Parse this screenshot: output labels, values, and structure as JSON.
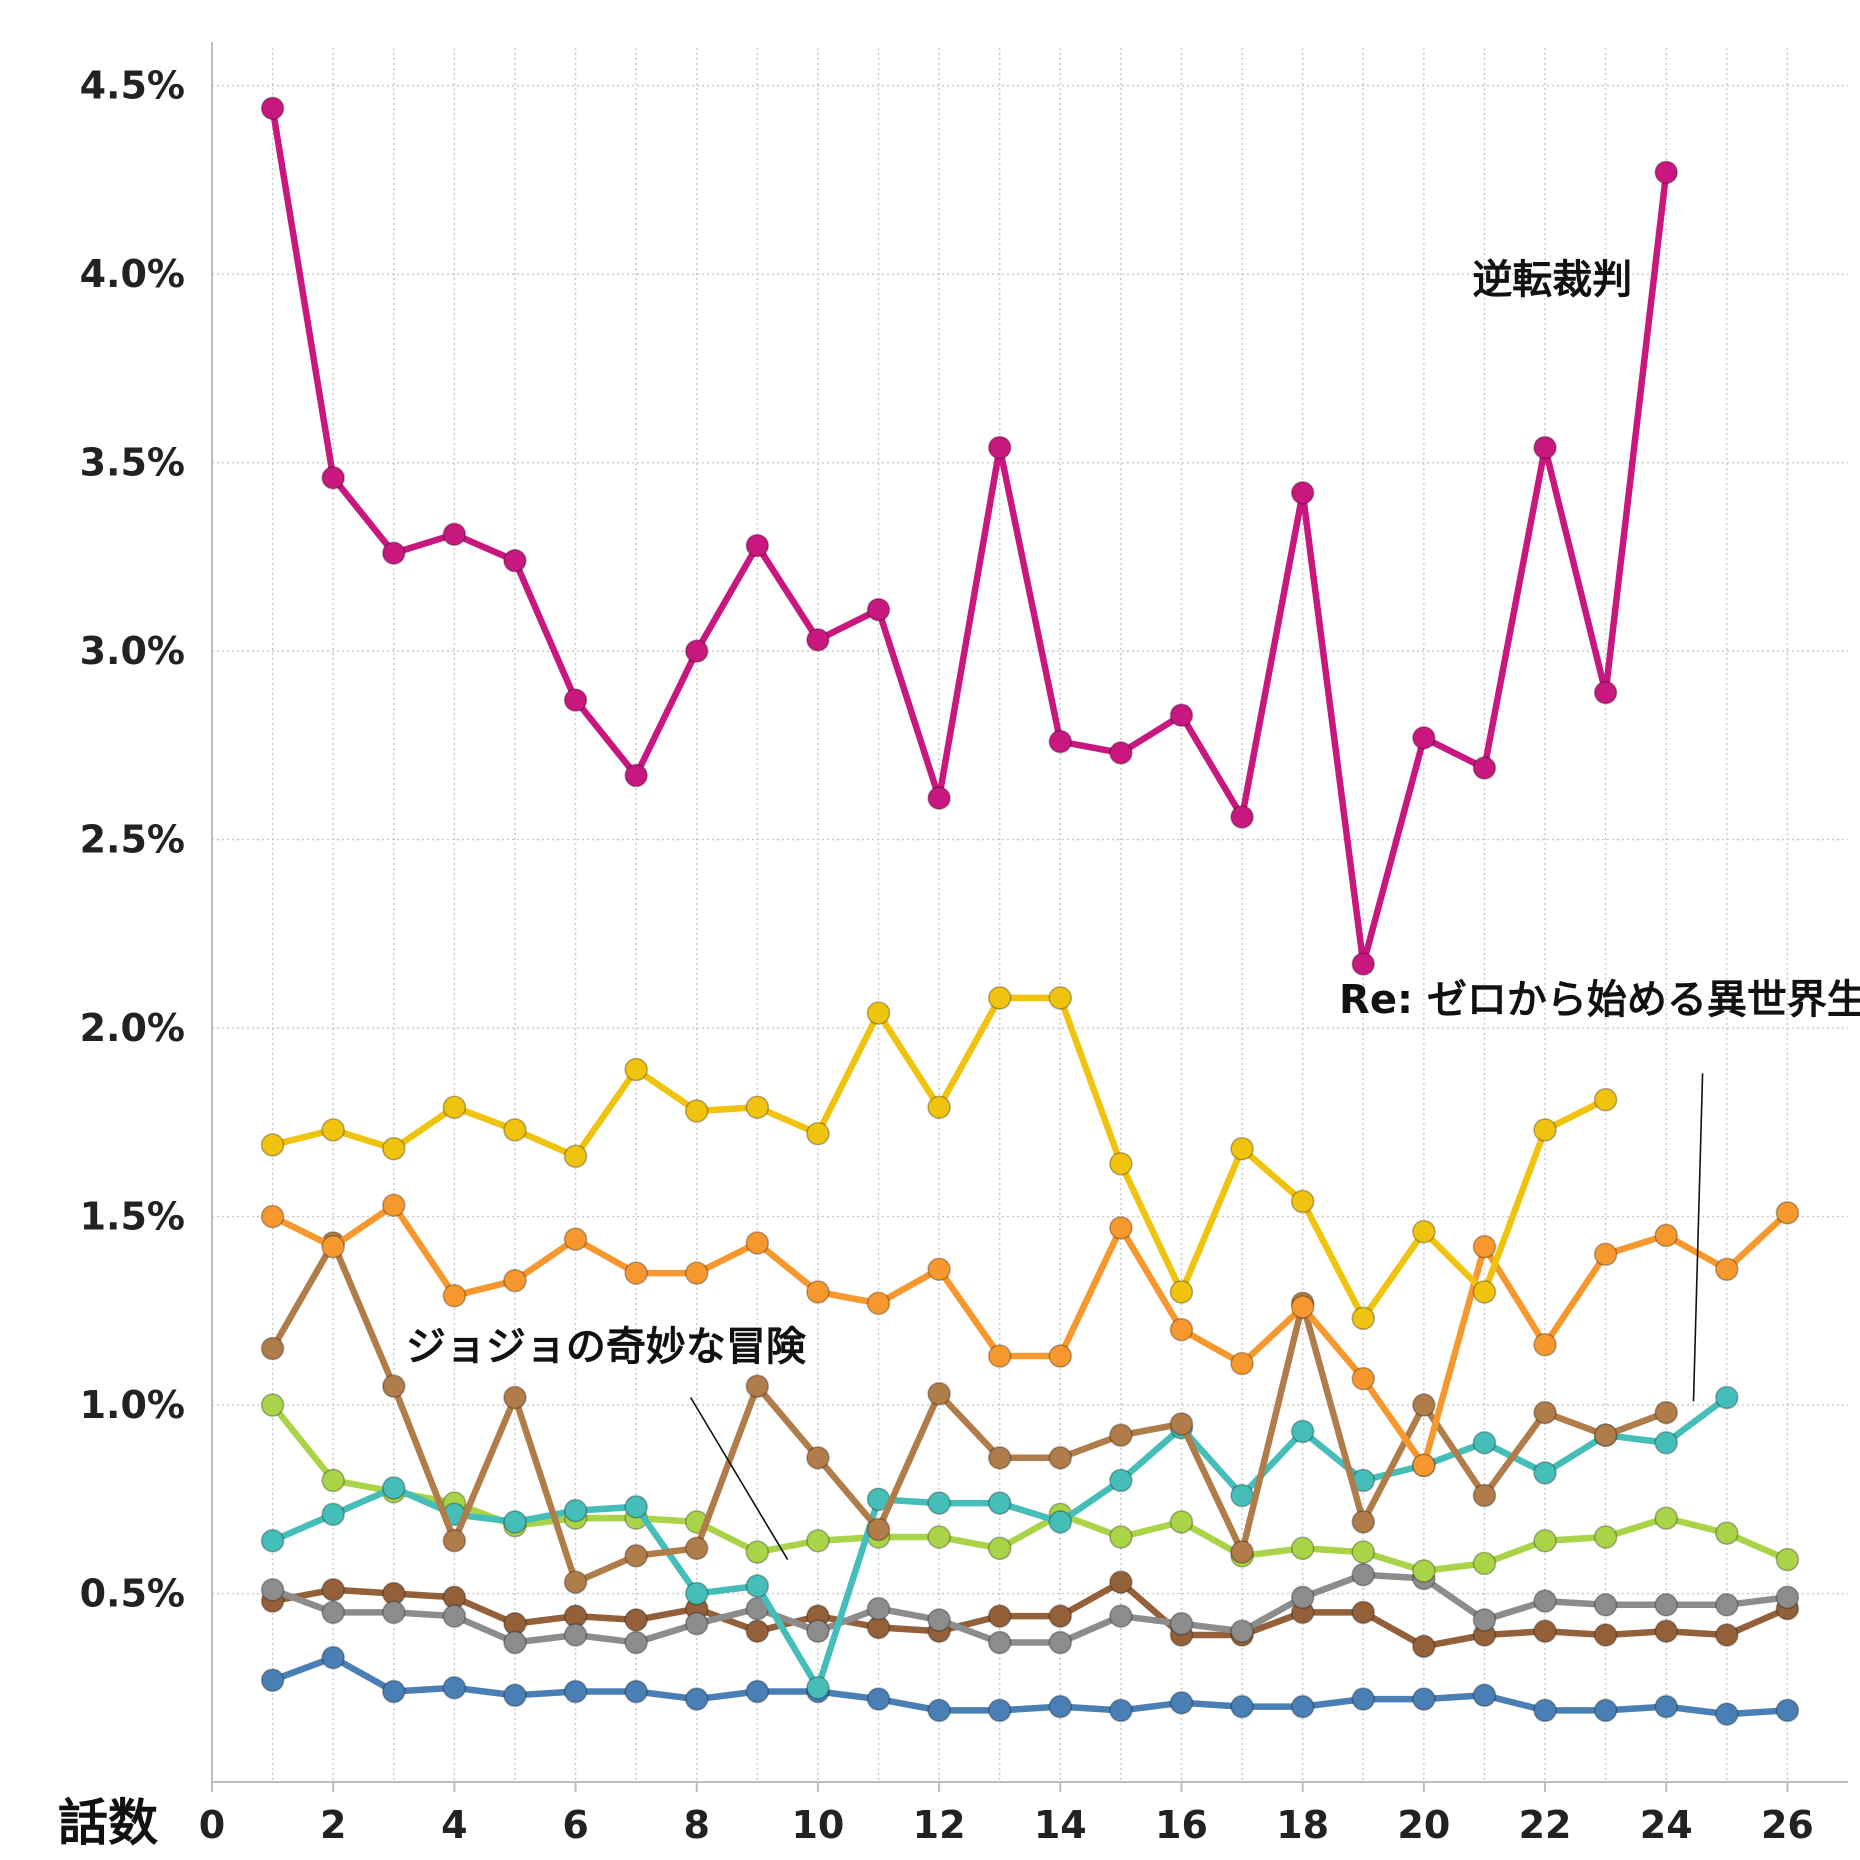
{
  "chart_data": {
    "type": "line",
    "title": "",
    "xlabel": "話数",
    "ylabel": "",
    "xlim": [
      0,
      27
    ],
    "ylim": [
      0.0,
      4.6
    ],
    "x_ticks": [
      0,
      2,
      4,
      6,
      8,
      10,
      12,
      14,
      16,
      18,
      20,
      22,
      24,
      26
    ],
    "y_ticks": [
      0.5,
      1.0,
      1.5,
      2.0,
      2.5,
      3.0,
      3.5,
      4.0,
      4.5
    ],
    "y_tick_labels": [
      "0.5%",
      "1.0%",
      "1.5%",
      "2.0%",
      "2.5%",
      "3.0%",
      "3.5%",
      "4.0%",
      "4.5%"
    ],
    "grid": true,
    "series": [
      {
        "color": "#c8187f",
        "x": [
          1,
          2,
          3,
          4,
          5,
          6,
          7,
          8,
          9,
          10,
          11,
          12,
          13,
          14,
          15,
          16,
          17,
          18,
          19,
          20,
          21,
          22,
          23,
          24
        ],
        "y": [
          4.44,
          3.46,
          3.26,
          3.31,
          3.24,
          2.87,
          2.67,
          3.0,
          3.28,
          3.03,
          3.11,
          2.61,
          3.54,
          2.76,
          2.73,
          2.83,
          2.56,
          3.42,
          2.17,
          2.77,
          2.69,
          3.54,
          2.89,
          4.27
        ]
      },
      {
        "color": "#f0c30e",
        "x": [
          1,
          2,
          3,
          4,
          5,
          6,
          7,
          8,
          9,
          10,
          11,
          12,
          13,
          14,
          15,
          16,
          17,
          18,
          19,
          20,
          21,
          22,
          23
        ],
        "y": [
          1.69,
          1.73,
          1.68,
          1.79,
          1.73,
          1.66,
          1.89,
          1.78,
          1.79,
          1.72,
          2.04,
          1.79,
          2.08,
          2.08,
          1.64,
          1.3,
          1.68,
          1.54,
          1.23,
          1.46,
          1.3,
          1.73,
          1.81
        ]
      },
      {
        "color": "#f7982f",
        "x": [
          1,
          2,
          3,
          4,
          5,
          6,
          7,
          8,
          9,
          10,
          11,
          12,
          13,
          14,
          15,
          16,
          17,
          18,
          19,
          20,
          21,
          22,
          23,
          24,
          25,
          26
        ],
        "y": [
          1.5,
          1.42,
          1.53,
          1.29,
          1.33,
          1.44,
          1.35,
          1.35,
          1.43,
          1.3,
          1.27,
          1.36,
          1.13,
          1.13,
          1.47,
          1.2,
          1.11,
          1.26,
          1.07,
          0.84,
          1.42,
          1.16,
          1.4,
          1.45,
          1.36,
          1.51
        ]
      },
      {
        "color": "#b07c4a",
        "x": [
          1,
          2,
          3,
          4,
          5,
          6,
          7,
          8,
          9,
          10,
          11,
          12,
          13,
          14,
          15,
          16,
          17,
          18,
          19,
          20,
          21,
          22,
          23,
          24
        ],
        "y": [
          1.15,
          1.43,
          1.05,
          0.64,
          1.02,
          0.53,
          0.6,
          0.62,
          1.05,
          0.86,
          0.67,
          1.03,
          0.86,
          0.86,
          0.92,
          0.95,
          0.61,
          1.27,
          0.69,
          1.0,
          0.76,
          0.98,
          0.92,
          0.98
        ]
      },
      {
        "color": "#45bdb8",
        "x": [
          1,
          2,
          3,
          4,
          5,
          6,
          7,
          8,
          9,
          10,
          11,
          12,
          13,
          14,
          15,
          16,
          17,
          18,
          19,
          20,
          21,
          22,
          23,
          24,
          25
        ],
        "y": [
          0.64,
          0.71,
          0.78,
          0.71,
          0.69,
          0.72,
          0.73,
          0.5,
          0.52,
          0.25,
          0.75,
          0.74,
          0.74,
          0.69,
          0.8,
          0.94,
          0.76,
          0.93,
          0.8,
          0.84,
          0.9,
          0.82,
          0.92,
          0.9,
          1.02
        ]
      },
      {
        "color": "#aad447",
        "x": [
          1,
          2,
          3,
          4,
          5,
          6,
          7,
          8,
          9,
          10,
          11,
          12,
          13,
          14,
          15,
          16,
          17,
          18,
          19,
          20,
          21,
          22,
          23,
          24,
          25,
          26
        ],
        "y": [
          1.0,
          0.8,
          0.77,
          0.74,
          0.68,
          0.7,
          0.7,
          0.69,
          0.61,
          0.64,
          0.65,
          0.65,
          0.62,
          0.71,
          0.65,
          0.69,
          0.6,
          0.62,
          0.61,
          0.56,
          0.58,
          0.64,
          0.65,
          0.7,
          0.66,
          0.59
        ]
      },
      {
        "color": "#8c8c8c",
        "x": [
          1,
          2,
          3,
          4,
          5,
          6,
          7,
          8,
          9,
          10,
          11,
          12,
          13,
          14,
          15,
          16,
          17,
          18,
          19,
          20,
          21,
          22,
          23,
          24,
          25,
          26
        ],
        "y": [
          0.51,
          0.45,
          0.45,
          0.44,
          0.37,
          0.39,
          0.37,
          0.42,
          0.46,
          0.4,
          0.46,
          0.43,
          0.37,
          0.37,
          0.44,
          0.42,
          0.4,
          0.49,
          0.55,
          0.54,
          0.43,
          0.48,
          0.47,
          0.47,
          0.47,
          0.49
        ]
      },
      {
        "color": "#94603a",
        "x": [
          1,
          2,
          3,
          4,
          5,
          6,
          7,
          8,
          9,
          10,
          11,
          12,
          13,
          14,
          15,
          16,
          17,
          18,
          19,
          20,
          21,
          22,
          23,
          24,
          25,
          26
        ],
        "y": [
          0.48,
          0.51,
          0.5,
          0.49,
          0.42,
          0.44,
          0.43,
          0.46,
          0.4,
          0.44,
          0.41,
          0.4,
          0.44,
          0.44,
          0.53,
          0.39,
          0.39,
          0.45,
          0.45,
          0.36,
          0.39,
          0.4,
          0.39,
          0.4,
          0.39,
          0.46
        ]
      },
      {
        "color": "#4a7fb5",
        "x": [
          1,
          2,
          3,
          4,
          5,
          6,
          7,
          8,
          9,
          10,
          11,
          12,
          13,
          14,
          15,
          16,
          17,
          18,
          19,
          20,
          21,
          22,
          23,
          24,
          25,
          26
        ],
        "y": [
          0.27,
          0.33,
          0.24,
          0.25,
          0.23,
          0.24,
          0.24,
          0.22,
          0.24,
          0.24,
          0.22,
          0.19,
          0.19,
          0.2,
          0.19,
          0.21,
          0.2,
          0.2,
          0.22,
          0.22,
          0.23,
          0.19,
          0.19,
          0.2,
          0.18,
          0.19
        ]
      }
    ],
    "annotations": [
      {
        "text": "逆転裁判",
        "x": 20.8,
        "y": 3.95,
        "leader": null
      },
      {
        "text": "Re: ゼロから始める異世界生活",
        "x": 18.6,
        "y": 2.04,
        "leader": {
          "from": [
            24.6,
            1.88
          ],
          "to": [
            24.45,
            1.01
          ]
        }
      },
      {
        "text": "ジョジョの奇妙な冒険",
        "x": 3.2,
        "y": 1.12,
        "leader": {
          "from": [
            7.9,
            1.02
          ],
          "to": [
            9.5,
            0.59
          ]
        }
      }
    ]
  }
}
